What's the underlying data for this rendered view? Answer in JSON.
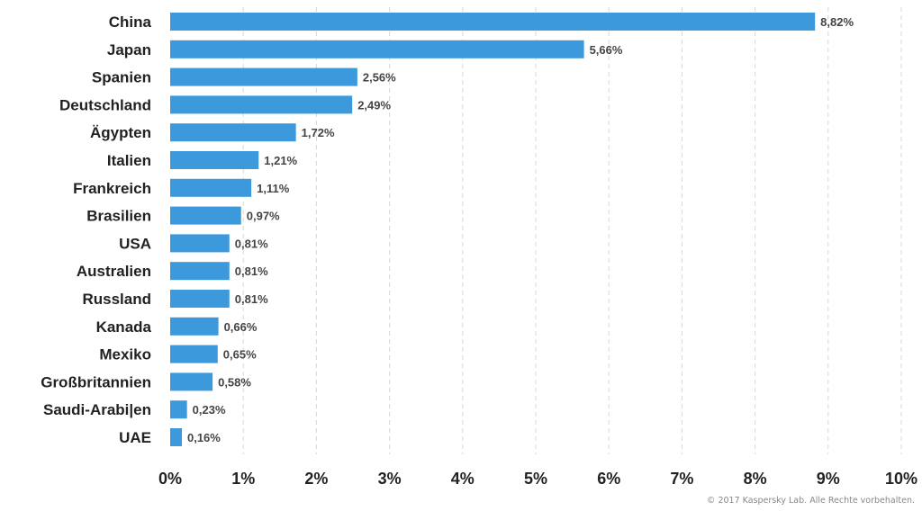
{
  "chart_data": {
    "type": "bar",
    "orientation": "horizontal",
    "categories": [
      "China",
      "Japan",
      "Spanien",
      "Deutschland",
      "Ägypten",
      "Italien",
      "Frankreich",
      "Brasilien",
      "USA",
      "Australien",
      "Russland",
      "Kanada",
      "Mexiko",
      "Großbritannien",
      "Saudi-Arabi|en",
      "UAE"
    ],
    "values": [
      8.82,
      5.66,
      2.56,
      2.49,
      1.72,
      1.21,
      1.11,
      0.97,
      0.81,
      0.81,
      0.81,
      0.66,
      0.65,
      0.58,
      0.23,
      0.16
    ],
    "value_labels": [
      "8,82%",
      "5,66%",
      "2,56%",
      "2,49%",
      "1,72%",
      "1,21%",
      "1,11%",
      "0,97%",
      "0,81%",
      "0,81%",
      "0,81%",
      "0,66%",
      "0,65%",
      "0,58%",
      "0,23%",
      "0,16%"
    ],
    "xlim": [
      0,
      10
    ],
    "x_ticks": [
      "0%",
      "1%",
      "2%",
      "3%",
      "4%",
      "5%",
      "6%",
      "7%",
      "8%",
      "9%",
      "10%"
    ],
    "grid": true,
    "legend": "none",
    "bar_color": "#3c99dc"
  },
  "footer": {
    "credit": "© 2017 Kaspersky Lab. Alle Rechte vorbehalten."
  }
}
